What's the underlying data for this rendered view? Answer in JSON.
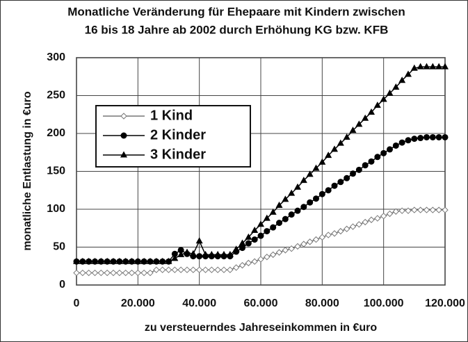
{
  "chart_data": {
    "type": "line",
    "title": [
      "Monatliche Veränderung für Ehepaare mit Kindern zwischen",
      "16 bis 18 Jahre ab 2002 durch Erhöhung KG bzw. KFB"
    ],
    "xlabel": "zu versteuerndes Jahreseinkommen in €uro",
    "ylabel": "monatliche Entlastung in €uro",
    "x": [
      0,
      2000,
      4000,
      6000,
      8000,
      10000,
      12000,
      14000,
      16000,
      18000,
      20000,
      22000,
      24000,
      26000,
      28000,
      30000,
      32000,
      34000,
      36000,
      38000,
      40000,
      42000,
      44000,
      46000,
      48000,
      50000,
      52000,
      54000,
      56000,
      58000,
      60000,
      62000,
      64000,
      66000,
      68000,
      70000,
      72000,
      74000,
      76000,
      78000,
      80000,
      82000,
      84000,
      86000,
      88000,
      90000,
      92000,
      94000,
      96000,
      98000,
      100000,
      102000,
      104000,
      106000,
      108000,
      110000,
      112000,
      114000,
      116000,
      118000,
      120000
    ],
    "series": [
      {
        "name": "1 Kind",
        "color": "#777777",
        "marker": "diamond",
        "values": [
          16,
          16,
          16,
          16,
          16,
          16,
          16,
          16,
          16,
          16,
          16,
          16,
          16,
          20,
          20,
          20,
          20,
          20,
          20,
          20,
          20,
          20,
          20,
          20,
          20,
          20,
          23,
          26,
          29,
          31,
          34,
          37,
          40,
          43,
          46,
          48,
          51,
          54,
          57,
          60,
          63,
          66,
          68,
          71,
          74,
          77,
          80,
          83,
          86,
          88,
          91,
          94,
          97,
          98,
          98,
          99,
          99,
          99,
          99,
          99,
          99
        ]
      },
      {
        "name": "2 Kinder",
        "color": "#000000",
        "marker": "circle",
        "values": [
          31,
          31,
          31,
          31,
          31,
          31,
          31,
          31,
          31,
          31,
          31,
          31,
          31,
          31,
          31,
          31,
          41,
          46,
          41,
          38,
          38,
          38,
          38,
          38,
          38,
          38,
          44,
          49,
          55,
          60,
          65,
          71,
          76,
          82,
          87,
          93,
          98,
          103,
          109,
          114,
          120,
          125,
          131,
          136,
          141,
          147,
          152,
          158,
          163,
          169,
          174,
          179,
          184,
          188,
          191,
          193,
          194,
          195,
          195,
          195,
          195
        ]
      },
      {
        "name": "3 Kinder",
        "color": "#000000",
        "marker": "triangle",
        "values": [
          31,
          31,
          31,
          31,
          31,
          31,
          31,
          31,
          31,
          31,
          31,
          31,
          31,
          31,
          31,
          31,
          35,
          40,
          43,
          41,
          58,
          40,
          40,
          40,
          40,
          40,
          47,
          55,
          63,
          72,
          80,
          88,
          96,
          105,
          113,
          121,
          129,
          138,
          146,
          154,
          162,
          171,
          179,
          187,
          195,
          204,
          212,
          220,
          228,
          237,
          245,
          253,
          261,
          270,
          278,
          286,
          288,
          288,
          288,
          288,
          288
        ]
      }
    ],
    "xlim": [
      0,
      120000
    ],
    "xticks": [
      0,
      {
        "value": 20000,
        "label": "20.000"
      },
      {
        "value": 40000,
        "label": "40.000"
      },
      {
        "value": 60000,
        "label": "60.000"
      },
      {
        "value": 80000,
        "label": "80.000"
      },
      {
        "value": 100000,
        "label": "100.000"
      },
      {
        "value": 120000,
        "label": "120.000"
      }
    ],
    "ylim": [
      0,
      300
    ],
    "yticks": [
      0,
      50,
      100,
      150,
      200,
      250,
      300
    ],
    "grid": true,
    "legend": "upper left"
  }
}
